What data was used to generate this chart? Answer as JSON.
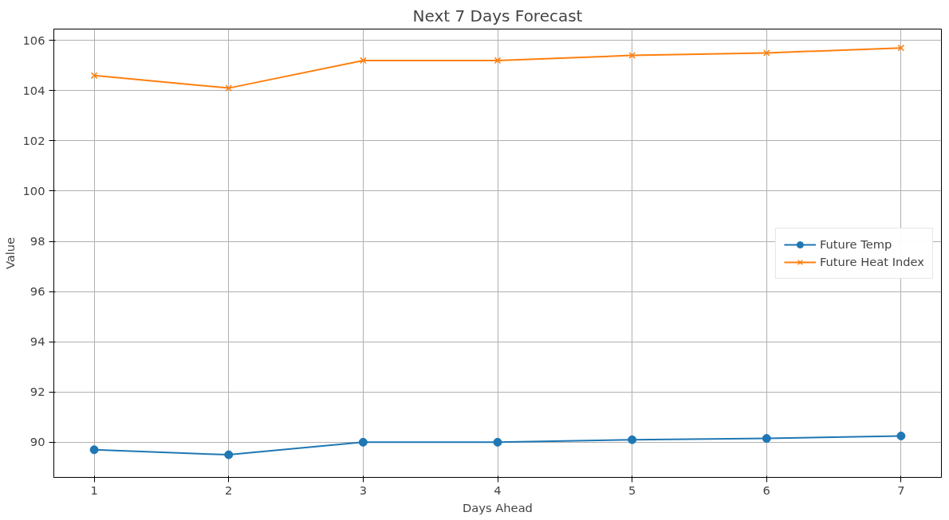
{
  "chart_data": {
    "type": "line",
    "title": "Next 7 Days Forecast",
    "xlabel": "Days Ahead",
    "ylabel": "Value",
    "x": [
      1,
      2,
      3,
      4,
      5,
      6,
      7
    ],
    "series": [
      {
        "name": "Future Temp",
        "color": "#1f77b4",
        "marker": "circle",
        "values": [
          89.7,
          89.5,
          90.0,
          90.0,
          90.1,
          90.15,
          90.25
        ]
      },
      {
        "name": "Future Heat Index",
        "color": "#ff7f0e",
        "marker": "cross",
        "values": [
          104.6,
          104.1,
          105.2,
          105.2,
          105.4,
          105.5,
          105.7
        ]
      }
    ],
    "xlim": [
      0.7,
      7.3
    ],
    "ylim": [
      88.6,
      106.45
    ],
    "xticks": [
      1,
      2,
      3,
      4,
      5,
      6,
      7
    ],
    "yticks": [
      90,
      92,
      94,
      96,
      98,
      100,
      102,
      104,
      106
    ],
    "grid": true,
    "legend": "right",
    "line_style": "solid"
  }
}
